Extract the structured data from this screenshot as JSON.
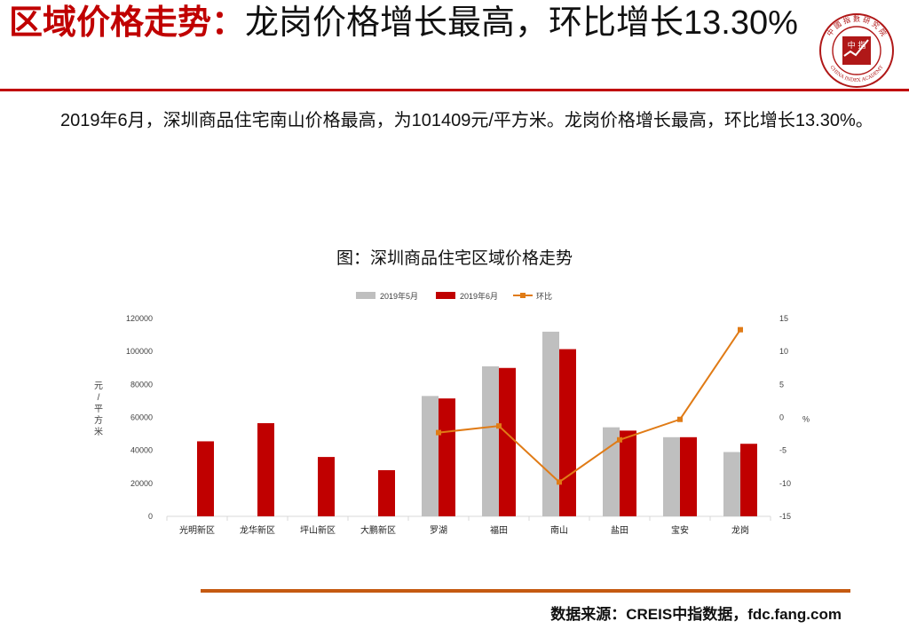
{
  "header": {
    "title_red": "区域价格走势：",
    "title_black": "龙岗价格增长最高，环比增长13.30%"
  },
  "logo": {
    "icon": "china-index-academy-seal-icon",
    "center_text": "中 指",
    "ring_text_top": "中 國 指 數 研 究 院",
    "ring_text_bottom": "CHINA INDEX ACADEMY"
  },
  "body": {
    "paragraph": "2019年6月，深圳商品住宅南山价格最高，为101409元/平方米。龙岗价格增长最高，环比增长13.30%。"
  },
  "chart_title": "图：深圳商品住宅区域价格走势",
  "colors": {
    "brand_red": "#c00000",
    "may_bar": "#bfbfbf",
    "jun_bar": "#c00000",
    "mom_line": "#e07b16",
    "rule_orange": "#c55a11"
  },
  "chart_data": {
    "type": "bar",
    "title": "图：深圳商品住宅区域价格走势",
    "categories": [
      "光明新区",
      "龙华新区",
      "坪山新区",
      "大鹏新区",
      "罗湖",
      "福田",
      "南山",
      "盐田",
      "宝安",
      "龙岗"
    ],
    "ylabel": "元/平方米",
    "y2label": "%",
    "ylim": [
      0,
      120000
    ],
    "yticks": [
      0,
      20000,
      40000,
      60000,
      80000,
      100000,
      120000
    ],
    "y2lim": [
      -15,
      15
    ],
    "y2ticks": [
      -15,
      -10,
      -5,
      0,
      5,
      10,
      15
    ],
    "legend_position": "top",
    "grid": false,
    "series": [
      {
        "name": "2019年5月",
        "type": "bar",
        "values": [
          null,
          null,
          null,
          null,
          73000,
          91000,
          112000,
          54000,
          48000,
          39000
        ]
      },
      {
        "name": "2019年6月",
        "type": "bar",
        "values": [
          45500,
          56500,
          36000,
          28000,
          71500,
          90000,
          101409,
          52000,
          48000,
          44000
        ]
      },
      {
        "name": "环比",
        "type": "line",
        "axis": "right",
        "values": [
          null,
          null,
          null,
          null,
          -2.3,
          -1.3,
          -9.8,
          -3.4,
          -0.3,
          13.3
        ]
      }
    ]
  },
  "footer": {
    "source": "数据来源：CREIS中指数据，fdc.fang.com"
  }
}
